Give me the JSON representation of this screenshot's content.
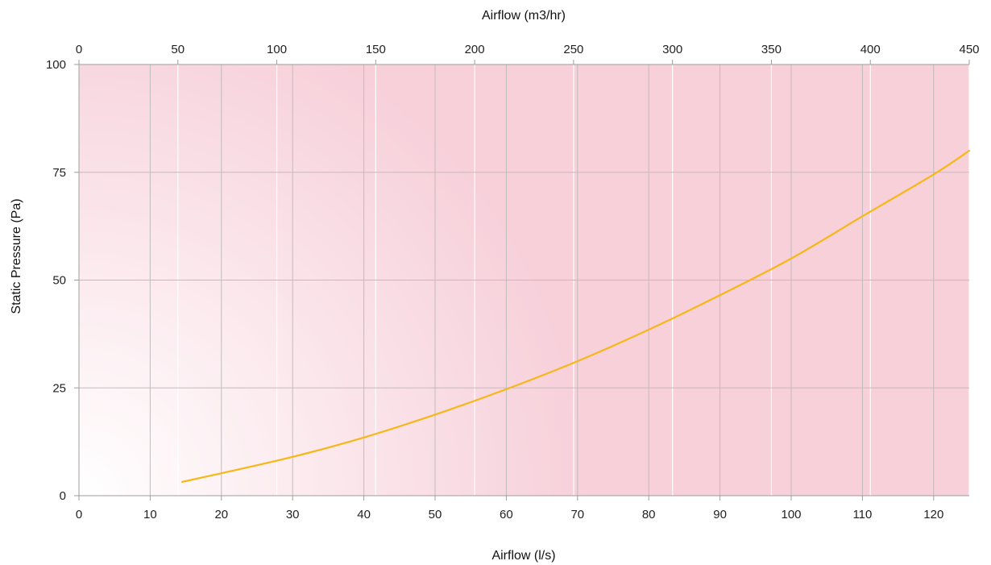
{
  "chart_data": {
    "type": "line",
    "xlabel": "Airflow (l/s)",
    "x2label": "Airflow (m3/hr)",
    "ylabel": "Static Pressure (Pa)",
    "xlim": [
      0,
      125
    ],
    "x2lim": [
      0,
      450
    ],
    "ylim": [
      0,
      100
    ],
    "xticks": [
      0,
      10,
      20,
      30,
      40,
      50,
      60,
      70,
      80,
      90,
      100,
      110,
      120
    ],
    "x2ticks": [
      0,
      50,
      100,
      150,
      200,
      250,
      300,
      350,
      400,
      450
    ],
    "yticks": [
      0,
      25,
      50,
      75,
      100
    ],
    "grid": true,
    "colors": {
      "line": "#F6B717",
      "background_strong": "#F7D0DA",
      "background_light": "#FFFFFF",
      "grid_primary": "#BDBDBD",
      "grid_secondary": "#FFFFFF"
    },
    "series": [
      {
        "x": [
          14.5,
          20,
          30,
          40,
          50,
          60,
          70,
          80,
          90,
          100,
          110,
          120,
          125
        ],
        "values": [
          3.2,
          5.2,
          9.0,
          13.5,
          18.8,
          24.7,
          31.2,
          38.5,
          46.5,
          55.0,
          64.8,
          74.5,
          80.0
        ]
      }
    ]
  }
}
